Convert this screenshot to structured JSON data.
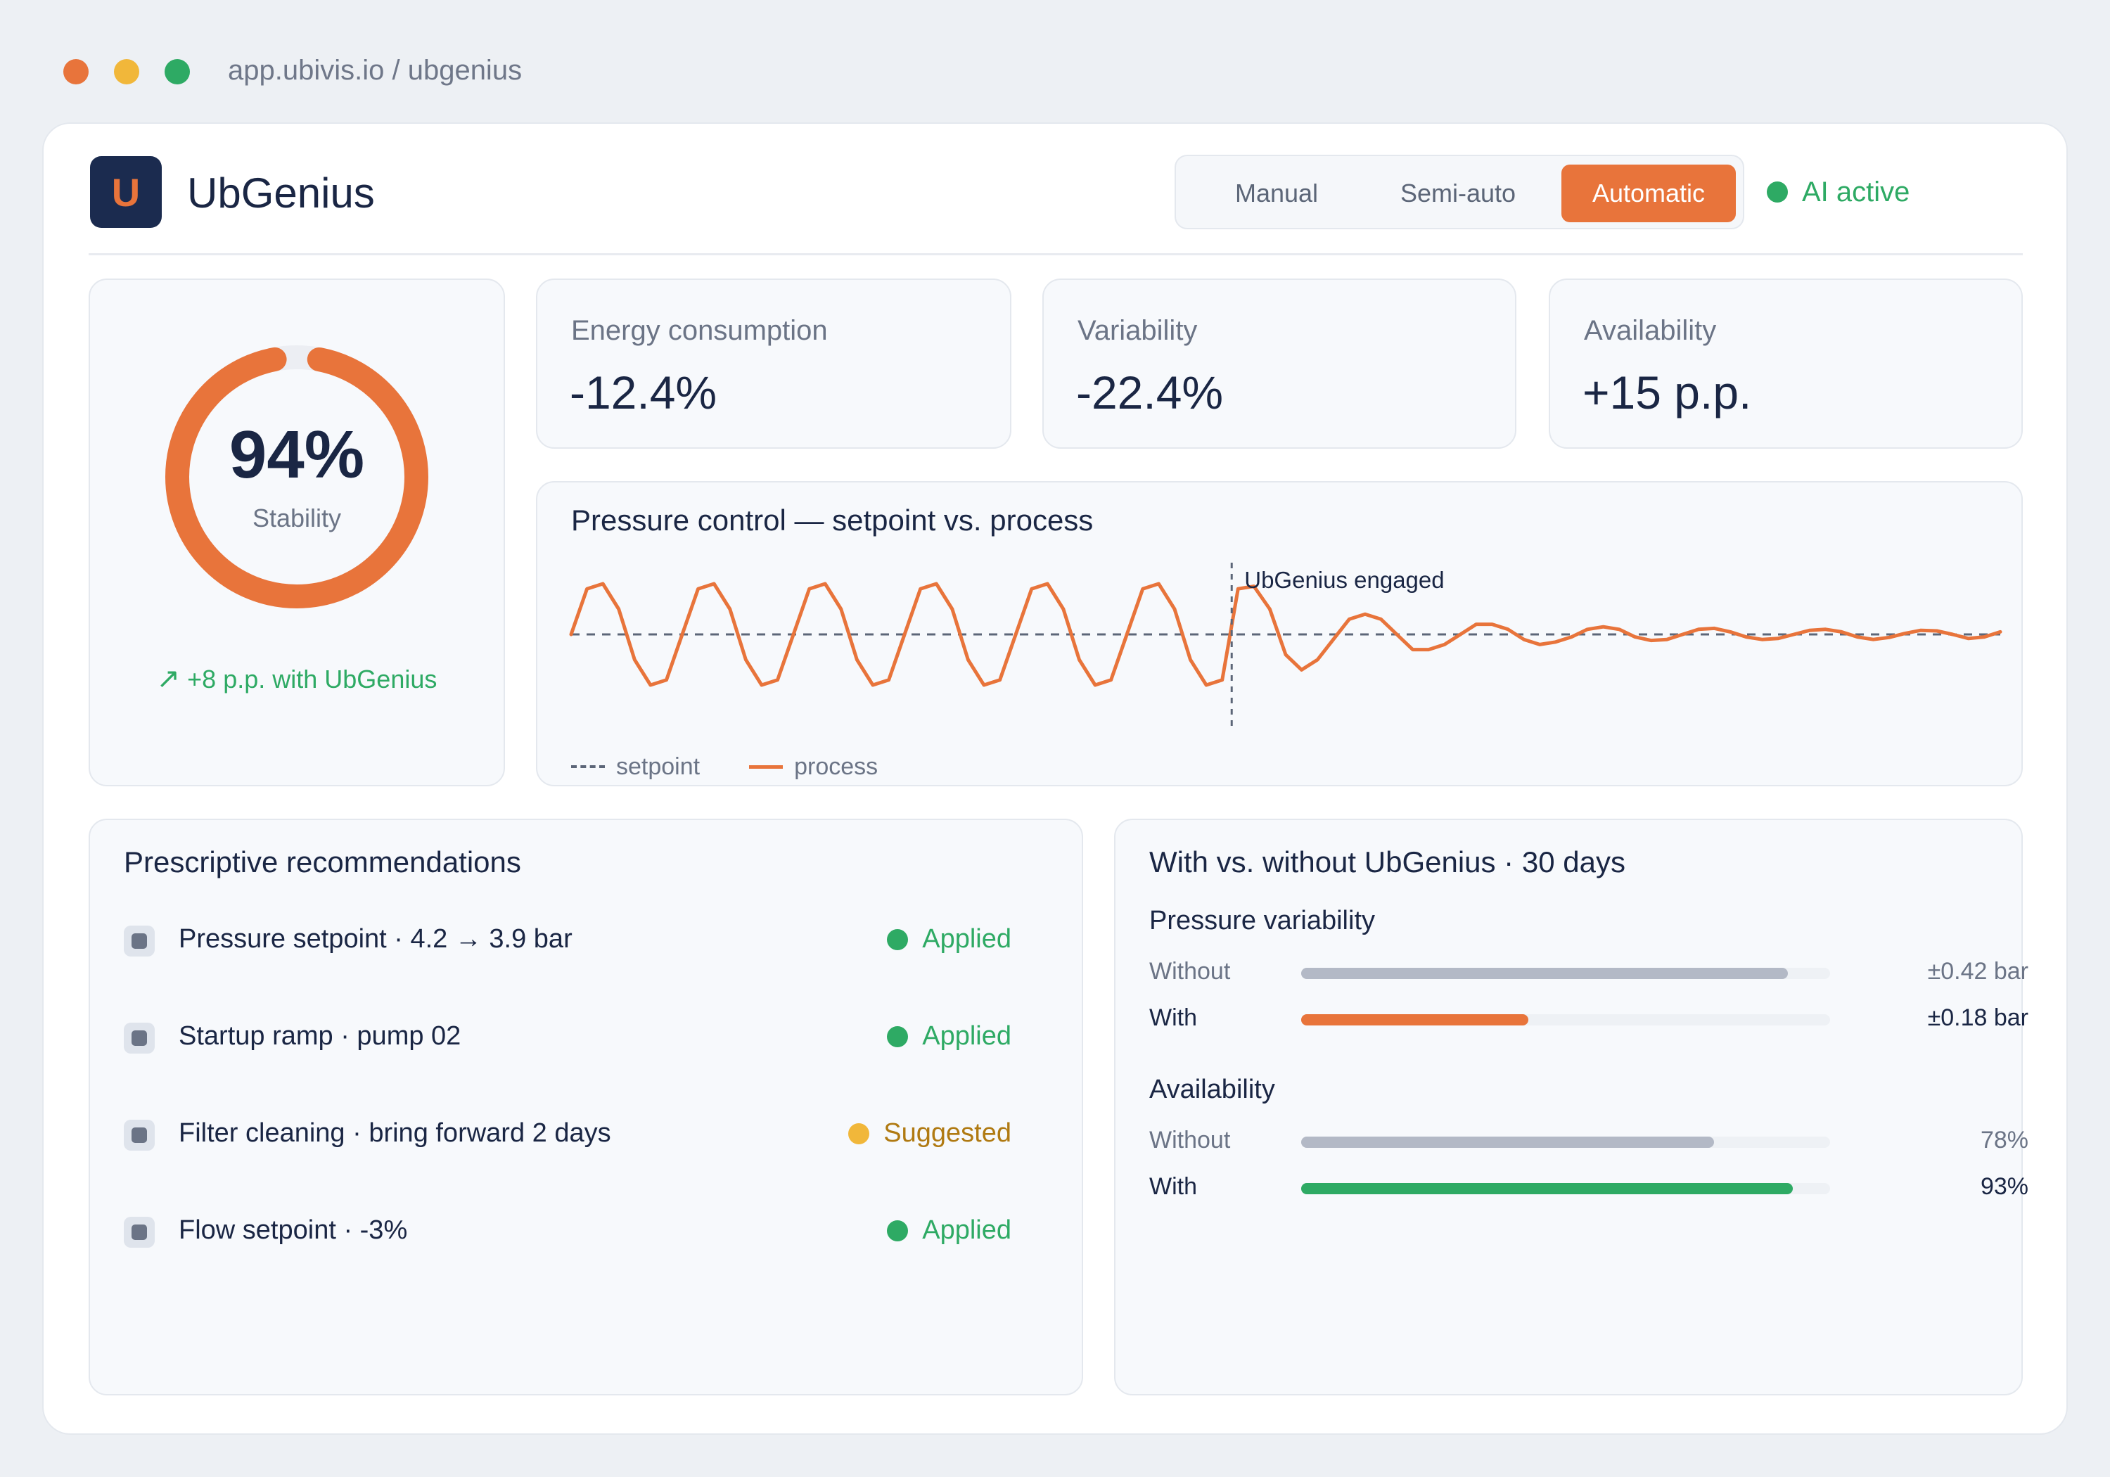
{
  "browser": {
    "url": "app.ubivis.io / ubgenius",
    "traffic_lights": [
      "#e8743b",
      "#f1b73a",
      "#2eaa64"
    ]
  },
  "app": {
    "logo_letter": "U",
    "title": "UbGenius"
  },
  "modes": {
    "items": [
      "Manual",
      "Semi-auto",
      "Automatic"
    ],
    "selected": "Automatic"
  },
  "ai_status": {
    "label": "AI active",
    "color": "#2eaa64"
  },
  "stability": {
    "value": "94%",
    "fraction": 0.94,
    "label": "Stability",
    "delta": "+8 p.p. with UbGenius",
    "ring_color": "#e8743b"
  },
  "kpis": [
    {
      "label": "Energy consumption",
      "value": "-12.4%"
    },
    {
      "label": "Variability",
      "value": "-22.4%"
    },
    {
      "label": "Availability",
      "value": "+15 p.p."
    }
  ],
  "pressure_chart": {
    "title": "Pressure control — setpoint vs. process",
    "annotation": "UbGenius engaged",
    "legend": {
      "setpoint": "setpoint",
      "process": "process"
    },
    "colors": {
      "process": "#e8743b",
      "setpoint": "#5c6678"
    }
  },
  "chart_data": {
    "type": "line",
    "title": "Pressure control — setpoint vs. process",
    "xlabel": "",
    "ylabel": "",
    "grid": false,
    "legend_position": "bottom-left",
    "annotations": [
      {
        "text": "UbGenius engaged",
        "x": 41.6
      }
    ],
    "x": [
      0,
      1,
      2,
      3,
      4,
      5,
      6,
      7,
      8,
      9,
      10,
      11,
      12,
      13,
      14,
      15,
      16,
      17,
      18,
      19,
      20,
      21,
      22,
      23,
      24,
      25,
      26,
      27,
      28,
      29,
      30,
      31,
      32,
      33,
      34,
      35,
      36,
      37,
      38,
      39,
      40,
      41,
      42,
      43,
      44,
      45,
      46,
      47,
      48,
      49,
      50,
      51,
      52,
      53,
      54,
      55,
      56,
      57,
      58,
      59,
      60,
      61,
      62,
      63,
      64,
      65,
      66,
      67,
      68,
      69,
      70,
      71,
      72,
      73,
      74,
      75,
      76,
      77,
      78,
      79,
      80,
      81,
      82,
      83,
      84,
      85,
      86,
      87,
      88,
      89,
      90
    ],
    "series": [
      {
        "name": "setpoint",
        "values": [
          0,
          0,
          0,
          0,
          0,
          0,
          0,
          0,
          0,
          0,
          0,
          0,
          0,
          0,
          0,
          0,
          0,
          0,
          0,
          0,
          0,
          0,
          0,
          0,
          0,
          0,
          0,
          0,
          0,
          0,
          0,
          0,
          0,
          0,
          0,
          0,
          0,
          0,
          0,
          0,
          0,
          0,
          0,
          0,
          0,
          0,
          0,
          0,
          0,
          0,
          0,
          0,
          0,
          0,
          0,
          0,
          0,
          0,
          0,
          0,
          0,
          0,
          0,
          0,
          0,
          0,
          0,
          0,
          0,
          0,
          0,
          0,
          0,
          0,
          0,
          0,
          0,
          0,
          0,
          0,
          0,
          0,
          0,
          0,
          0,
          0,
          0,
          0,
          0,
          0,
          0
        ]
      },
      {
        "name": "process",
        "values": [
          0,
          0.9,
          1,
          0.5,
          -0.5,
          -1,
          -0.9,
          0,
          0.9,
          1,
          0.5,
          -0.5,
          -1,
          -0.9,
          0,
          0.9,
          1,
          0.5,
          -0.5,
          -1,
          -0.9,
          0,
          0.9,
          1,
          0.5,
          -0.5,
          -1,
          -0.9,
          0,
          0.9,
          1,
          0.5,
          -0.5,
          -1,
          -0.9,
          0,
          0.9,
          1,
          0.5,
          -0.5,
          -1,
          -0.9,
          0.9,
          0.95,
          0.5,
          -0.4,
          -0.7,
          -0.5,
          -0.1,
          0.3,
          0.4,
          0.3,
          0,
          -0.3,
          -0.3,
          -0.2,
          0,
          0.2,
          0.2,
          0.1,
          -0.1,
          -0.2,
          -0.15,
          -0.05,
          0.1,
          0.15,
          0.1,
          -0.05,
          -0.12,
          -0.1,
          0,
          0.1,
          0.12,
          0.05,
          -0.05,
          -0.1,
          -0.08,
          0,
          0.08,
          0.1,
          0.05,
          -0.05,
          -0.1,
          -0.06,
          0.02,
          0.08,
          0.07,
          0,
          -0.08,
          -0.05,
          0.05
        ]
      }
    ]
  },
  "recommendations": {
    "title": "Prescriptive recommendations",
    "items": [
      {
        "text": "Pressure setpoint · 4.2 → 3.9 bar",
        "status": "Applied",
        "color": "#2eaa64"
      },
      {
        "text": "Startup ramp · pump 02",
        "status": "Applied",
        "color": "#2eaa64"
      },
      {
        "text": "Filter cleaning · bring forward 2 days",
        "status": "Suggested",
        "color": "#b07a12",
        "dot_color": "#f1b73a"
      },
      {
        "text": "Flow setpoint · -3%",
        "status": "Applied",
        "color": "#2eaa64"
      }
    ]
  },
  "comparison": {
    "title": "With vs. without UbGenius · 30 days",
    "groups": [
      {
        "name": "Pressure variability",
        "rows": [
          {
            "label": "Without",
            "value": "±0.42 bar",
            "fraction": 0.92,
            "color": "#b3b9c6"
          },
          {
            "label": "With",
            "value": "±0.18 bar",
            "fraction": 0.43,
            "color": "#e8743b"
          }
        ]
      },
      {
        "name": "Availability",
        "rows": [
          {
            "label": "Without",
            "value": "78%",
            "fraction": 0.78,
            "color": "#b3b9c6"
          },
          {
            "label": "With",
            "value": "93%",
            "fraction": 0.93,
            "color": "#2eaa64"
          }
        ]
      }
    ]
  }
}
